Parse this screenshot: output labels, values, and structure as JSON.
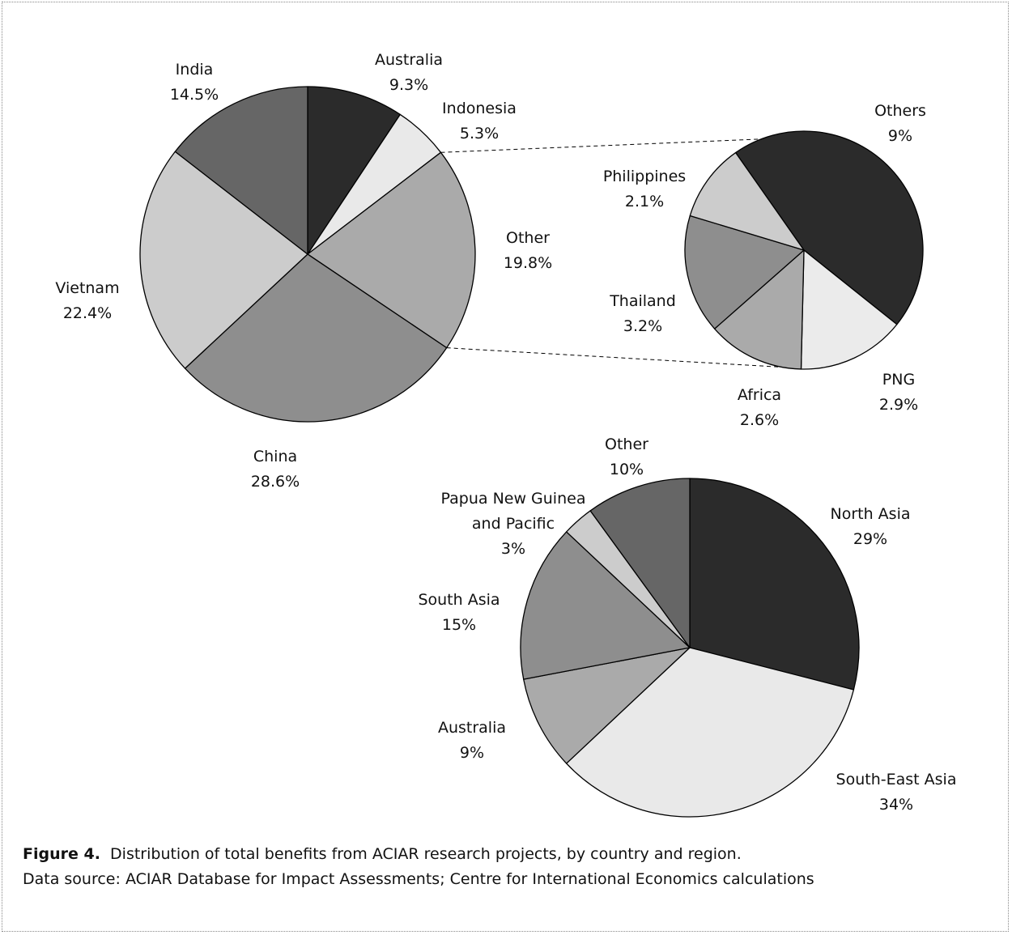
{
  "chart_data": [
    {
      "type": "pie",
      "name": "country",
      "slices": [
        {
          "label": "Australia",
          "value_text": "9.3%",
          "value": 9.3,
          "color": "#2b2b2b"
        },
        {
          "label": "Indonesia",
          "value_text": "5.3%",
          "value": 5.3,
          "color": "#e9e9e9"
        },
        {
          "label": "Other",
          "value_text": "19.8%",
          "value": 19.8,
          "color": "#aaaaaa"
        },
        {
          "label": "China",
          "value_text": "28.6%",
          "value": 28.6,
          "color": "#8e8e8e"
        },
        {
          "label": "Vietnam",
          "value_text": "22.4%",
          "value": 22.4,
          "color": "#cccccc"
        },
        {
          "label": "India",
          "value_text": "14.5%",
          "value": 14.5,
          "color": "#666666"
        }
      ]
    },
    {
      "type": "pie",
      "name": "other-breakdown",
      "slices": [
        {
          "label": "Others",
          "value_text": "9%",
          "value": 9,
          "color": "#2b2b2b"
        },
        {
          "label": "PNG",
          "value_text": "2.9%",
          "value": 2.9,
          "color": "#ebebeb"
        },
        {
          "label": "Africa",
          "value_text": "2.6%",
          "value": 2.6,
          "color": "#aaaaaa"
        },
        {
          "label": "Thailand",
          "value_text": "3.2%",
          "value": 3.2,
          "color": "#8e8e8e"
        },
        {
          "label": "Philippines",
          "value_text": "2.1%",
          "value": 2.1,
          "color": "#cccccc"
        }
      ]
    },
    {
      "type": "pie",
      "name": "region",
      "slices": [
        {
          "label": "North Asia",
          "value_text": "29%",
          "value": 29,
          "color": "#2b2b2b"
        },
        {
          "label": "South-East Asia",
          "value_text": "34%",
          "value": 34,
          "color": "#e9e9e9"
        },
        {
          "label": "Australia",
          "value_text": "9%",
          "value": 9,
          "color": "#aaaaaa"
        },
        {
          "label": "South Asia",
          "value_text": "15%",
          "value": 15,
          "color": "#8e8e8e"
        },
        {
          "label": "Papua New Guinea and Pacific",
          "label_lines": [
            "Papua New Guinea",
            "and Pacific"
          ],
          "value_text": "3%",
          "value": 3,
          "color": "#cccccc"
        },
        {
          "label": "Other",
          "value_text": "10%",
          "value": 10,
          "color": "#666666"
        }
      ]
    }
  ],
  "caption": {
    "figure_label": "Figure 4.",
    "title": "Distribution of total benefits from ACIAR research projects, by country and region.",
    "source": "Data source: ACIAR Database for Impact Assessments; Centre for International Economics calculations"
  }
}
